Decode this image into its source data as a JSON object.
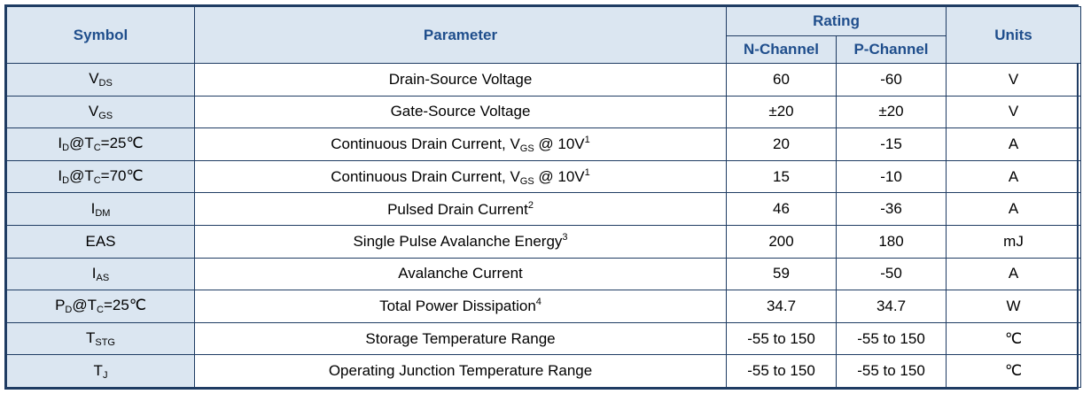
{
  "header": {
    "symbol": "Symbol",
    "parameter": "Parameter",
    "rating": "Rating",
    "n_channel": "N-Channel",
    "p_channel": "P-Channel",
    "units": "Units"
  },
  "rows": [
    {
      "sym_main": "V",
      "sym_sub": "DS",
      "sym_rest": "",
      "param": "Drain-Source Voltage",
      "param_sub": "",
      "param_after": "",
      "param_sup": "",
      "n": "60",
      "p": "-60",
      "unit": "V"
    },
    {
      "sym_main": "V",
      "sym_sub": "GS",
      "sym_rest": "",
      "param": "Gate-Source Voltage",
      "param_sub": "",
      "param_after": "",
      "param_sup": "",
      "n": "±20",
      "p": "±20",
      "unit": "V"
    },
    {
      "sym_main": "I",
      "sym_sub": "D",
      "sym_rest": "@T",
      "sym_sub2": "C",
      "sym_tail": "=25℃",
      "param": "Continuous Drain Current, V",
      "param_sub": "GS",
      "param_after": " @ 10V",
      "param_sup": "1",
      "n": "20",
      "p": "-15",
      "unit": "A"
    },
    {
      "sym_main": "I",
      "sym_sub": "D",
      "sym_rest": "@T",
      "sym_sub2": "C",
      "sym_tail": "=70℃",
      "param": "Continuous Drain Current, V",
      "param_sub": "GS",
      "param_after": " @ 10V",
      "param_sup": "1",
      "n": "15",
      "p": "-10",
      "unit": "A"
    },
    {
      "sym_main": "I",
      "sym_sub": "DM",
      "sym_rest": "",
      "param": "Pulsed Drain Current",
      "param_sub": "",
      "param_after": "",
      "param_sup": "2",
      "n": "46",
      "p": "-36",
      "unit": "A"
    },
    {
      "sym_main": "EAS",
      "sym_sub": "",
      "sym_rest": "",
      "param": "Single Pulse Avalanche Energy",
      "param_sub": "",
      "param_after": "",
      "param_sup": "3",
      "n": "200",
      "p": "180",
      "unit": "mJ"
    },
    {
      "sym_main": "I",
      "sym_sub": "AS",
      "sym_rest": "",
      "param": "Avalanche Current",
      "param_sub": "",
      "param_after": "",
      "param_sup": "",
      "n": "59",
      "p": "-50",
      "unit": "A"
    },
    {
      "sym_main": "P",
      "sym_sub": "D",
      "sym_rest": "@T",
      "sym_sub2": "C",
      "sym_tail": "=25℃",
      "param": "Total Power Dissipation",
      "param_sub": "",
      "param_after": "",
      "param_sup": "4",
      "n": "34.7",
      "p": "34.7",
      "unit": "W"
    },
    {
      "sym_main": "T",
      "sym_sub": "STG",
      "sym_rest": "",
      "param": "Storage Temperature Range",
      "param_sub": "",
      "param_after": "",
      "param_sup": "",
      "n": "-55 to 150",
      "p": "-55 to 150",
      "unit": "℃"
    },
    {
      "sym_main": "T",
      "sym_sub": "J",
      "sym_rest": "",
      "param": "Operating Junction Temperature Range",
      "param_sub": "",
      "param_after": "",
      "param_sup": "",
      "n": "-55 to 150",
      "p": "-55 to 150",
      "unit": "℃"
    }
  ]
}
